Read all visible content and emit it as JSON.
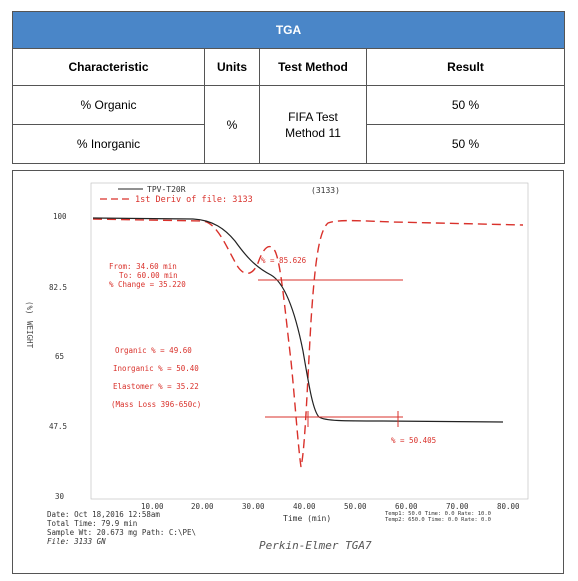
{
  "table": {
    "title": "TGA",
    "headers": [
      "Characteristic",
      "Units",
      "Test Method",
      "Result"
    ],
    "rows": [
      {
        "characteristic": "% Organic",
        "result": "50 %"
      },
      {
        "characteristic": "% Inorganic",
        "result": "50 %"
      }
    ],
    "units": "%",
    "test_method_line1": "FIFA Test",
    "test_method_line2": "Method 11"
  },
  "figure": {
    "legend1": "TPV-T20R",
    "legend2": "1st Deriv of file: 3133",
    "file_id": "(3133)",
    "y_axis_label": "WEIGHT",
    "y_axis_unit": "(%)",
    "x_axis_label": "Time (min)",
    "y_ticks": [
      "100",
      "82.5",
      "65",
      "47.5",
      "30"
    ],
    "x_ticks": [
      "10.00",
      "20.00",
      "30.00",
      "40.00",
      "50.00",
      "60.00",
      "70.00",
      "80.00"
    ],
    "from": "From: 34.60 min",
    "to": "To: 60.00 min",
    "pct_change": "% Change = 35.220",
    "organic": "Organic % = 49.60",
    "inorganic": "Inorganic % = 50.40",
    "elastomer": "Elastomer % = 35.22",
    "mass_loss": "(Mass Loss 396-650c)",
    "mark1": "% = 85.626",
    "mark2": "% = 50.405",
    "date": "Date: Oct 18,2016 12:58am",
    "total_time": "Total Time:   79.9 min",
    "sample_wt": "Sample Wt: 20.673 mg Path: C:\\PE\\",
    "file": "File: 3133       GN",
    "temp1": "Temp1:  50.0 Time:   0.0 Rate:  10.0",
    "temp2": "Temp2: 650.0 Time:   0.0 Rate:   0.0",
    "instrument": "Perkin-Elmer TGA7",
    "colors": {
      "header_blue": "#4a86c8",
      "deriv_red": "#d9312b",
      "trace": "#222222"
    }
  }
}
